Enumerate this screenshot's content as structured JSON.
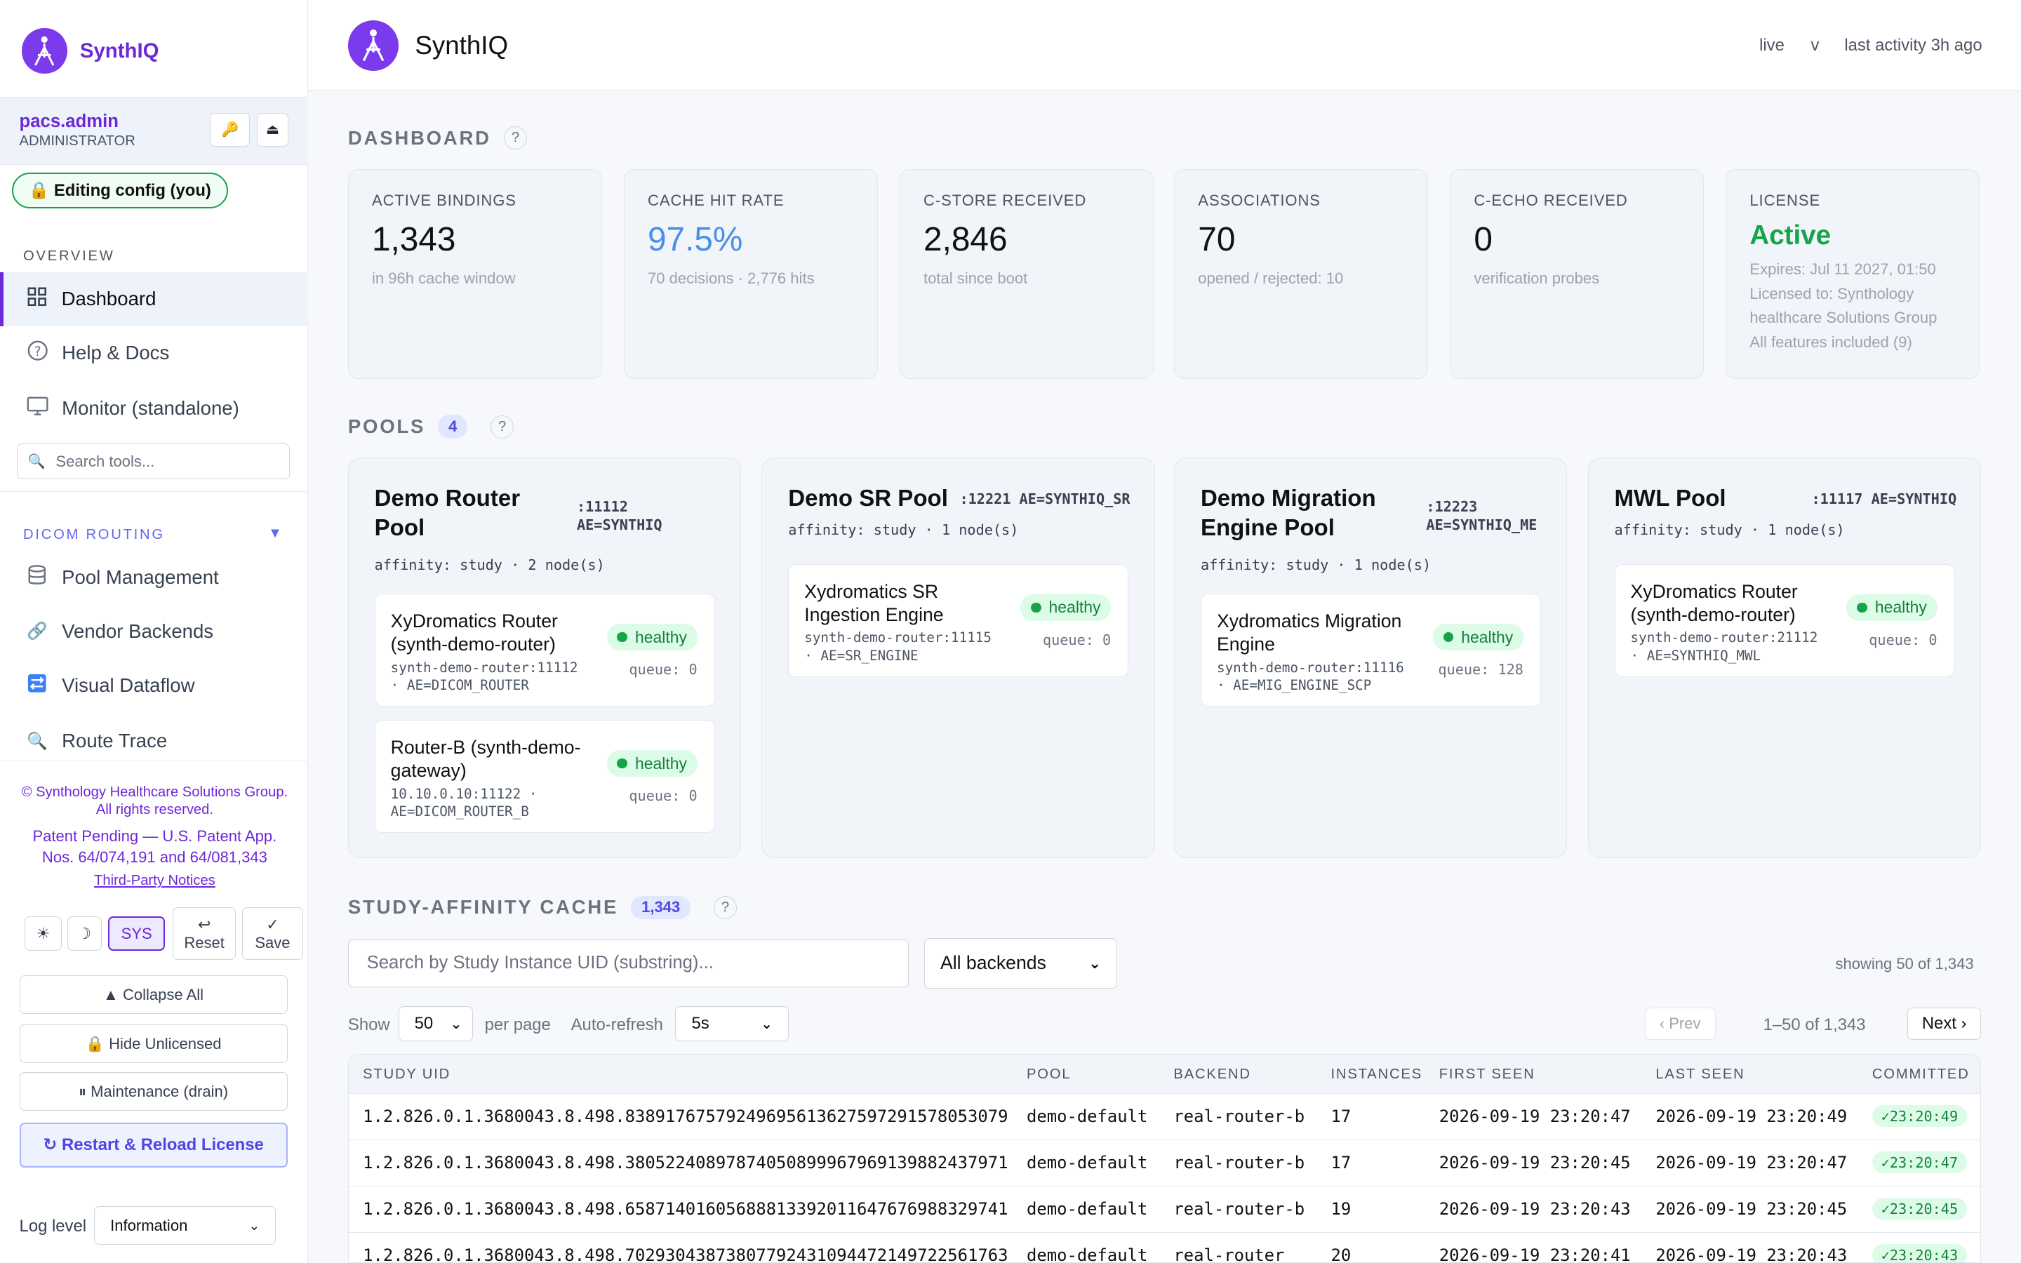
{
  "app": {
    "name": "SynthIQ",
    "status": "live",
    "status_menu": "v",
    "last_activity": "last activity 3h ago"
  },
  "user": {
    "name": "pacs.admin",
    "role": "ADMINISTRATOR",
    "key_icon": "key-icon",
    "eject_icon": "eject-icon"
  },
  "editing_badge": "🔒 Editing config (you)",
  "sidebar": {
    "overview_label": "OVERVIEW",
    "overview_items": [
      {
        "label": "Dashboard",
        "icon": "grid-icon"
      },
      {
        "label": "Help & Docs",
        "icon": "help-icon"
      },
      {
        "label": "Monitor (standalone)",
        "icon": "monitor-icon"
      }
    ],
    "search_placeholder": "Search tools...",
    "routing_label": "DICOM ROUTING",
    "routing_items": [
      {
        "label": "Pool Management",
        "icon": "database-icon"
      },
      {
        "label": "Vendor Backends",
        "icon": "link-icon"
      },
      {
        "label": "Visual Dataflow",
        "icon": "dataflow-icon"
      },
      {
        "label": "Route Trace",
        "icon": "magnifier-icon"
      }
    ],
    "copyright": "© Synthology Healthcare Solutions Group. All rights reserved.",
    "patent": "Patent Pending — U.S. Patent App. Nos. 64/074,191 and 64/081,343",
    "third_party": "Third-Party Notices",
    "theme_light": "☀",
    "theme_dark": "☽",
    "theme_sys": "SYS",
    "reset_label": "Reset",
    "save_label": "Save",
    "collapse_all": "▲ Collapse All",
    "hide_unlicensed": "🔒 Hide Unlicensed",
    "maintenance": "⏸ Maintenance (drain)",
    "restart": "↻ Restart & Reload License",
    "log_level_label": "Log level",
    "log_level_value": "Information"
  },
  "dashboard": {
    "title": "DASHBOARD",
    "cards": [
      {
        "title": "ACTIVE BINDINGS",
        "value": "1,343",
        "sub": "in 96h cache window"
      },
      {
        "title": "CACHE HIT RATE",
        "value": "97.5%",
        "sub": "70 decisions · 2,776 hits"
      },
      {
        "title": "C-STORE RECEIVED",
        "value": "2,846",
        "sub": "total since boot"
      },
      {
        "title": "ASSOCIATIONS",
        "value": "70",
        "sub": "opened / rejected: 10"
      },
      {
        "title": "C-ECHO RECEIVED",
        "value": "0",
        "sub": "verification probes"
      },
      {
        "title": "LICENSE",
        "value": "Active",
        "sub": "Expires: Jul 11 2027, 01:50",
        "sub2": "Licensed to: Synthology healthcare Solutions Group",
        "sub3": "All features included (9)"
      }
    ]
  },
  "pools": {
    "title": "POOLS",
    "count": "4",
    "items": [
      {
        "name": "Demo Router Pool",
        "port": ":11112",
        "ae": "AE=SYNTHIQ",
        "affinity": "affinity: study · 2 node(s)",
        "nodes": [
          {
            "name": "XyDromatics Router (synth-demo-router)",
            "addr": "synth-demo-router:11112",
            "ae": "· AE=DICOM_ROUTER",
            "status": "healthy",
            "queue": "queue: 0"
          },
          {
            "name": "Router-B (synth-demo-gateway)",
            "addr": "10.10.0.10:11122 ·",
            "ae": "AE=DICOM_ROUTER_B",
            "status": "healthy",
            "queue": "queue: 0"
          }
        ]
      },
      {
        "name": "Demo SR Pool",
        "port": ":12221 AE=SYNTHIQ_SR",
        "ae": "",
        "affinity": "affinity: study · 1 node(s)",
        "nodes": [
          {
            "name": "Xydromatics SR Ingestion Engine",
            "addr": "synth-demo-router:11115",
            "ae": "· AE=SR_ENGINE",
            "status": "healthy",
            "queue": "queue: 0"
          }
        ]
      },
      {
        "name": "Demo Migration Engine Pool",
        "port": ":12223",
        "ae": "AE=SYNTHIQ_ME",
        "affinity": "affinity: study · 1 node(s)",
        "nodes": [
          {
            "name": "Xydromatics Migration Engine",
            "addr": "synth-demo-router:11116",
            "ae": "· AE=MIG_ENGINE_SCP",
            "status": "healthy",
            "queue": "queue: 128"
          }
        ]
      },
      {
        "name": "MWL Pool",
        "port": ":11117 AE=SYNTHIQ",
        "ae": "",
        "affinity": "affinity: study · 1 node(s)",
        "nodes": [
          {
            "name": "XyDromatics Router (synth-demo-router)",
            "addr": "synth-demo-router:21112",
            "ae": "· AE=SYNTHIQ_MWL",
            "status": "healthy",
            "queue": "queue: 0"
          }
        ]
      }
    ]
  },
  "cache": {
    "title": "STUDY-AFFINITY CACHE",
    "count": "1,343",
    "search_placeholder": "Search by Study Instance UID (substring)...",
    "backend_filter": "All backends",
    "showing": "showing 50 of 1,343",
    "show_label": "Show",
    "per_page_value": "50",
    "per_page_label": "per page",
    "auto_refresh_label": "Auto-refresh",
    "auto_refresh_value": "5s",
    "prev": "‹ Prev",
    "range": "1–50 of 1,343",
    "next": "Next ›",
    "columns": [
      "STUDY UID",
      "POOL",
      "BACKEND",
      "INSTANCES",
      "FIRST SEEN",
      "LAST SEEN",
      "COMMITTED"
    ],
    "rows": [
      [
        "1.2.826.0.1.3680043.8.498.83891767579249695613627597291578053079",
        "demo-default",
        "real-router-b",
        "17",
        "2026-09-19 23:20:47",
        "2026-09-19 23:20:49",
        "✓23:20:49"
      ],
      [
        "1.2.826.0.1.3680043.8.498.38052240897874050899967969139882437971",
        "demo-default",
        "real-router-b",
        "17",
        "2026-09-19 23:20:45",
        "2026-09-19 23:20:47",
        "✓23:20:47"
      ],
      [
        "1.2.826.0.1.3680043.8.498.65871401605688813392011647676988329741",
        "demo-default",
        "real-router-b",
        "19",
        "2026-09-19 23:20:43",
        "2026-09-19 23:20:45",
        "✓23:20:45"
      ],
      [
        "1.2.826.0.1.3680043.8.498.70293043873807792431094472149722561763",
        "demo-default",
        "real-router",
        "20",
        "2026-09-19 23:20:41",
        "2026-09-19 23:20:43",
        "✓23:20:43"
      ]
    ]
  }
}
